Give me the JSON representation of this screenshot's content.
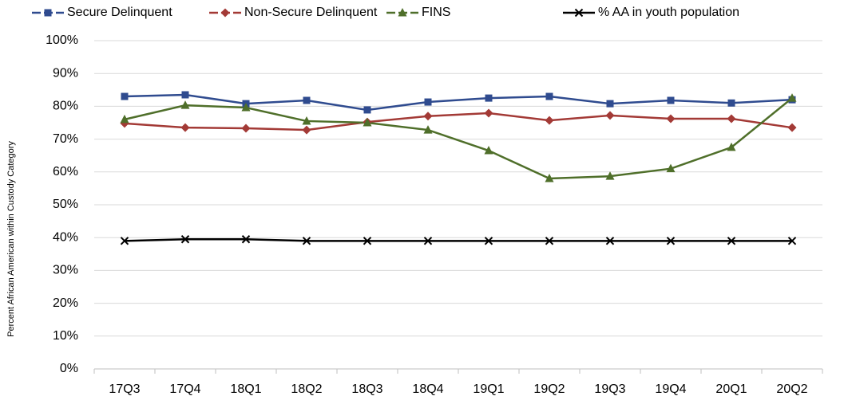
{
  "chart_data": {
    "type": "line",
    "y_label": "Percent African American within Custody Category",
    "categories": [
      "17Q3",
      "17Q4",
      "18Q1",
      "18Q2",
      "18Q3",
      "18Q4",
      "19Q1",
      "19Q2",
      "19Q3",
      "19Q4",
      "20Q1",
      "20Q2"
    ],
    "series": [
      {
        "name": "Secure Delinquent",
        "color": "#2f4b8f",
        "marker": "square",
        "values": [
          83.0,
          83.5,
          80.8,
          81.8,
          78.9,
          81.3,
          82.5,
          83.0,
          80.8,
          81.8,
          81.0,
          82.0
        ]
      },
      {
        "name": "Non-Secure Delinquent",
        "color": "#a33a36",
        "marker": "diamond",
        "values": [
          74.8,
          73.5,
          73.3,
          72.8,
          75.2,
          77.0,
          77.9,
          75.7,
          77.2,
          76.2,
          76.2,
          73.5
        ]
      },
      {
        "name": "FINS",
        "color": "#4f6f2a",
        "marker": "triangle",
        "values": [
          76.0,
          80.3,
          79.6,
          75.5,
          75.0,
          72.8,
          66.5,
          58.0,
          58.7,
          61.0,
          67.5,
          82.5
        ]
      },
      {
        "name": "% AA in youth population",
        "color": "#000000",
        "marker": "x",
        "values": [
          39.0,
          39.5,
          39.5,
          39.0,
          39.0,
          39.0,
          39.0,
          39.0,
          39.0,
          39.0,
          39.0,
          39.0
        ]
      }
    ],
    "ylim": [
      0,
      100
    ],
    "yticks": [
      {
        "value": 0,
        "label": "0%"
      },
      {
        "value": 10,
        "label": "10%"
      },
      {
        "value": 20,
        "label": "20%"
      },
      {
        "value": 30,
        "label": "30%"
      },
      {
        "value": 40,
        "label": "40%"
      },
      {
        "value": 50,
        "label": "50%"
      },
      {
        "value": 60,
        "label": "60%"
      },
      {
        "value": 70,
        "label": "70%"
      },
      {
        "value": 80,
        "label": "80%"
      },
      {
        "value": 90,
        "label": "90%"
      },
      {
        "value": 100,
        "label": "100%"
      }
    ],
    "grid": true,
    "legend": "top"
  }
}
